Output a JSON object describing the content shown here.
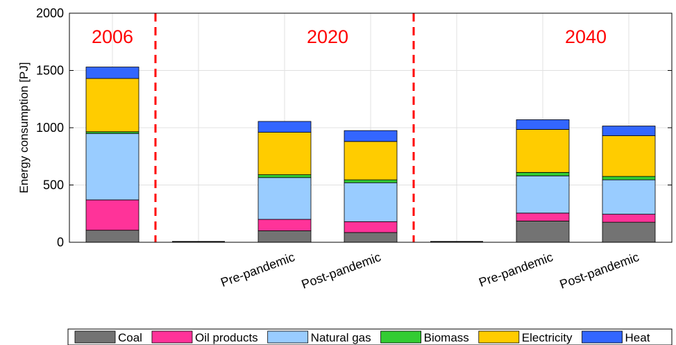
{
  "chart_data": {
    "type": "bar",
    "stacked": true,
    "ylabel": "Energy consumption [PJ]",
    "xlabel": "",
    "ylim": [
      0,
      2000
    ],
    "yticks": [
      0,
      500,
      1000,
      1500,
      2000
    ],
    "grid": true,
    "categories": [
      "",
      "",
      "Pre-pandemic",
      "Post-pandemic",
      "",
      "Pre-pandemic",
      "Post-pandemic"
    ],
    "series": [
      {
        "name": "Coal",
        "color": "#737373",
        "values": [
          105,
          0,
          100,
          85,
          0,
          185,
          175
        ]
      },
      {
        "name": "Oil products",
        "color": "#ff3399",
        "values": [
          265,
          0,
          100,
          95,
          0,
          70,
          70
        ]
      },
      {
        "name": "Natural gas",
        "color": "#99ccff",
        "values": [
          580,
          0,
          365,
          340,
          0,
          325,
          300
        ]
      },
      {
        "name": "Biomass",
        "color": "#33cc33",
        "values": [
          15,
          0,
          25,
          25,
          0,
          30,
          30
        ]
      },
      {
        "name": "Electricity",
        "color": "#ffcc00",
        "values": [
          465,
          0,
          370,
          335,
          0,
          375,
          355
        ]
      },
      {
        "name": "Heat",
        "color": "#3366ff",
        "values": [
          100,
          0,
          95,
          95,
          0,
          85,
          85
        ]
      }
    ],
    "separators_after_index": [
      0.5,
      3.5
    ],
    "period_labels": [
      "2006",
      "2020",
      "2040"
    ],
    "period_label_color": "#ff0000",
    "legend_position": "bottom"
  }
}
